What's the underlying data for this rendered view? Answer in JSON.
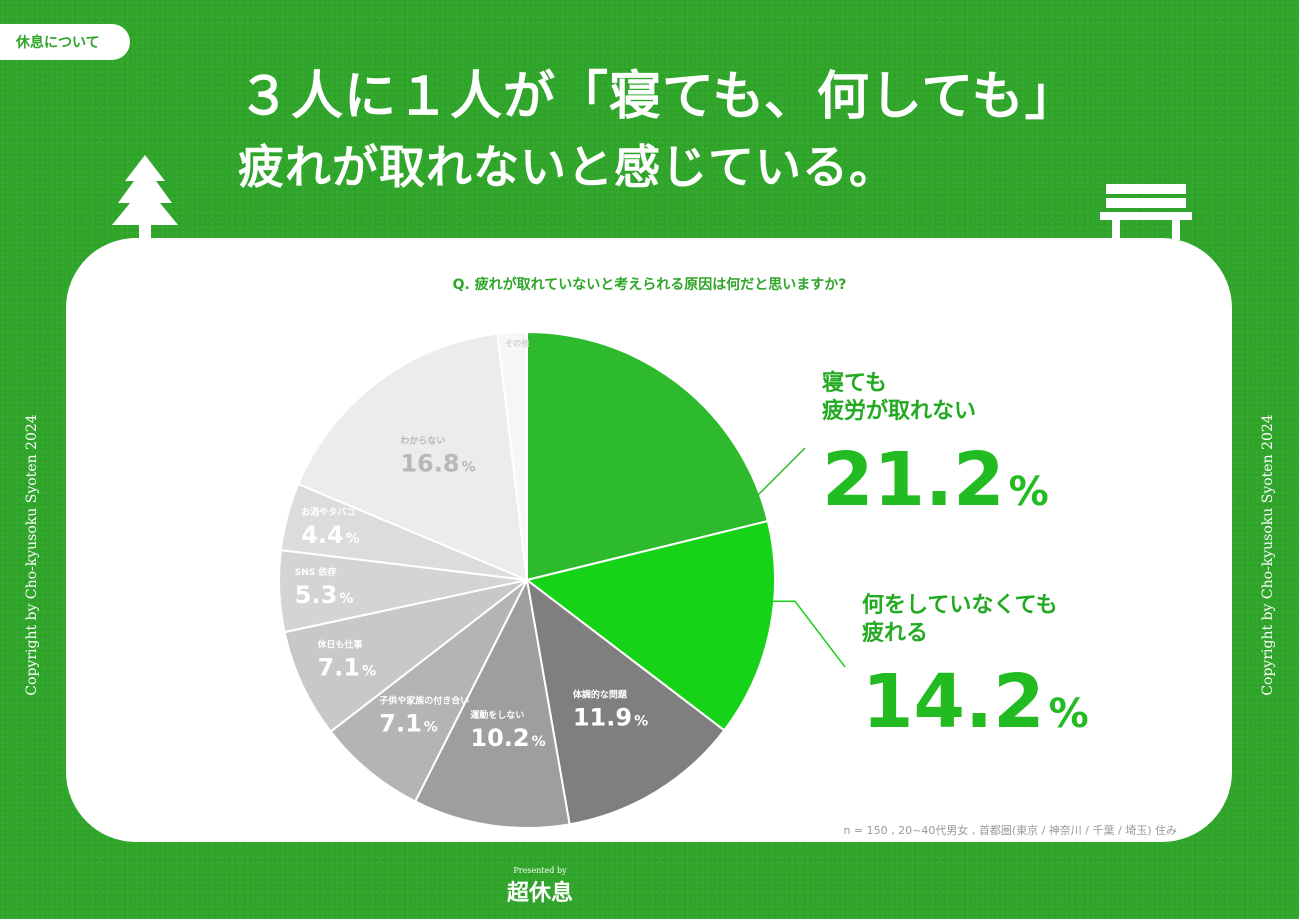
{
  "header": {
    "tag": "休息について",
    "title_line1": "３人に１人が「寝ても、何しても」",
    "title_line2": "疲れが取れないと感じている。"
  },
  "copyright": "Copyright by Cho-kyusoku Syoten 2024",
  "question": "Q. 疲れが取れていないと考えられる原因は何だと思いますか?",
  "note": "n = 150 , 20~40代男女 , 首都圏(東京 / 神奈川 / 千葉 / 埼玉) 住み",
  "footer": {
    "presented": "Presented by",
    "logo": "超休息"
  },
  "colors": {
    "background": "#2fa52a",
    "accent": "#22bb22"
  },
  "chart_data": {
    "type": "pie",
    "start": "12 o'clock",
    "direction": "clockwise",
    "unit": "%",
    "slices": [
      {
        "label": "寝ても疲労が取れない",
        "value": 21.2,
        "color": "#2dbb2d"
      },
      {
        "label": "何をしていなくても疲れる",
        "value": 14.2,
        "color": "#17d317"
      },
      {
        "label": "体調的な問題",
        "value": 11.9,
        "color": "#7f7f7f"
      },
      {
        "label": "運動をしない",
        "value": 10.2,
        "color": "#9e9e9e"
      },
      {
        "label": "子供や家族の付き合い",
        "value": 7.1,
        "color": "#b4b4b4"
      },
      {
        "label": "休日も仕事",
        "value": 7.1,
        "color": "#c8c8c8"
      },
      {
        "label": "SNS 依存",
        "value": 5.3,
        "color": "#d4d4d4"
      },
      {
        "label": "お酒やタバコ",
        "value": 4.4,
        "color": "#dcdcdc"
      },
      {
        "label": "わからない",
        "value": 16.8,
        "color": "#ececec"
      },
      {
        "label": "その他",
        "value": 1.9,
        "color": "#f6f6f6"
      }
    ],
    "callouts": [
      {
        "line1": "寝ても",
        "line2": "疲労が取れない",
        "value": "21.2"
      },
      {
        "line1": "何をしていなくても",
        "line2": "疲れる",
        "value": "14.2"
      }
    ],
    "inner_labels": [
      {
        "name": "体調的な問題",
        "value": "11.9"
      },
      {
        "name": "運動をしない",
        "value": "10.2"
      },
      {
        "name": "子供や家族の付き合い",
        "value": "7.1"
      },
      {
        "name": "休日も仕事",
        "value": "7.1"
      },
      {
        "name": "SNS 依存",
        "value": "5.3"
      },
      {
        "name": "お酒やタバコ",
        "value": "4.4"
      },
      {
        "name": "わからない",
        "value": "16.8"
      },
      {
        "name": "その他",
        "value": ""
      }
    ]
  }
}
